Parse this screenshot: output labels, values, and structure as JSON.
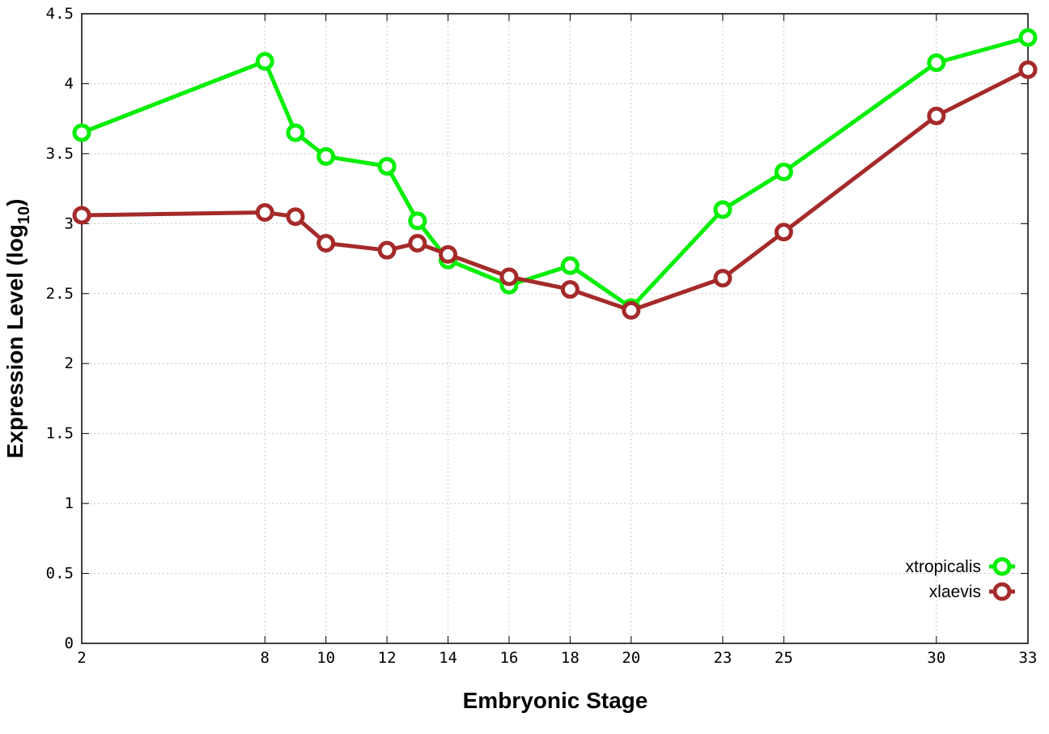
{
  "chart_data": {
    "type": "line",
    "xlabel": "Embryonic Stage",
    "ylabel_main": "Expression Level (log",
    "ylabel_sub": "10",
    "ylabel_close": ")",
    "xlim": [
      2,
      33
    ],
    "ylim": [
      0,
      4.5
    ],
    "x_ticks": [
      2,
      8,
      10,
      12,
      14,
      16,
      18,
      20,
      23,
      25,
      30,
      33
    ],
    "x_tick_labels": [
      "2",
      "8",
      "10",
      "12",
      "14",
      "16",
      "18",
      "20",
      "23",
      "25",
      "30",
      "33"
    ],
    "y_ticks": [
      0,
      0.5,
      1,
      1.5,
      2,
      2.5,
      3,
      3.5,
      4,
      4.5
    ],
    "y_tick_labels": [
      "0",
      "0.5",
      "1",
      "1.5",
      "2",
      "2.5",
      "3",
      "3.5",
      "4",
      "4.5"
    ],
    "x": [
      2,
      8,
      9,
      10,
      12,
      13,
      14,
      16,
      18,
      20,
      23,
      25,
      30,
      33
    ],
    "grid": true,
    "legend_position": "bottom-right",
    "series": [
      {
        "name": "xtropicalis",
        "color": "#00ee00",
        "values": [
          3.65,
          4.16,
          3.65,
          3.48,
          3.41,
          3.02,
          2.74,
          2.56,
          2.7,
          2.4,
          3.1,
          3.37,
          4.15,
          4.33
        ]
      },
      {
        "name": "xlaevis",
        "color": "#a52a2a",
        "values": [
          3.06,
          3.08,
          3.05,
          2.86,
          2.81,
          2.86,
          2.78,
          2.62,
          2.53,
          2.38,
          2.61,
          2.94,
          3.77,
          4.1
        ]
      }
    ]
  }
}
